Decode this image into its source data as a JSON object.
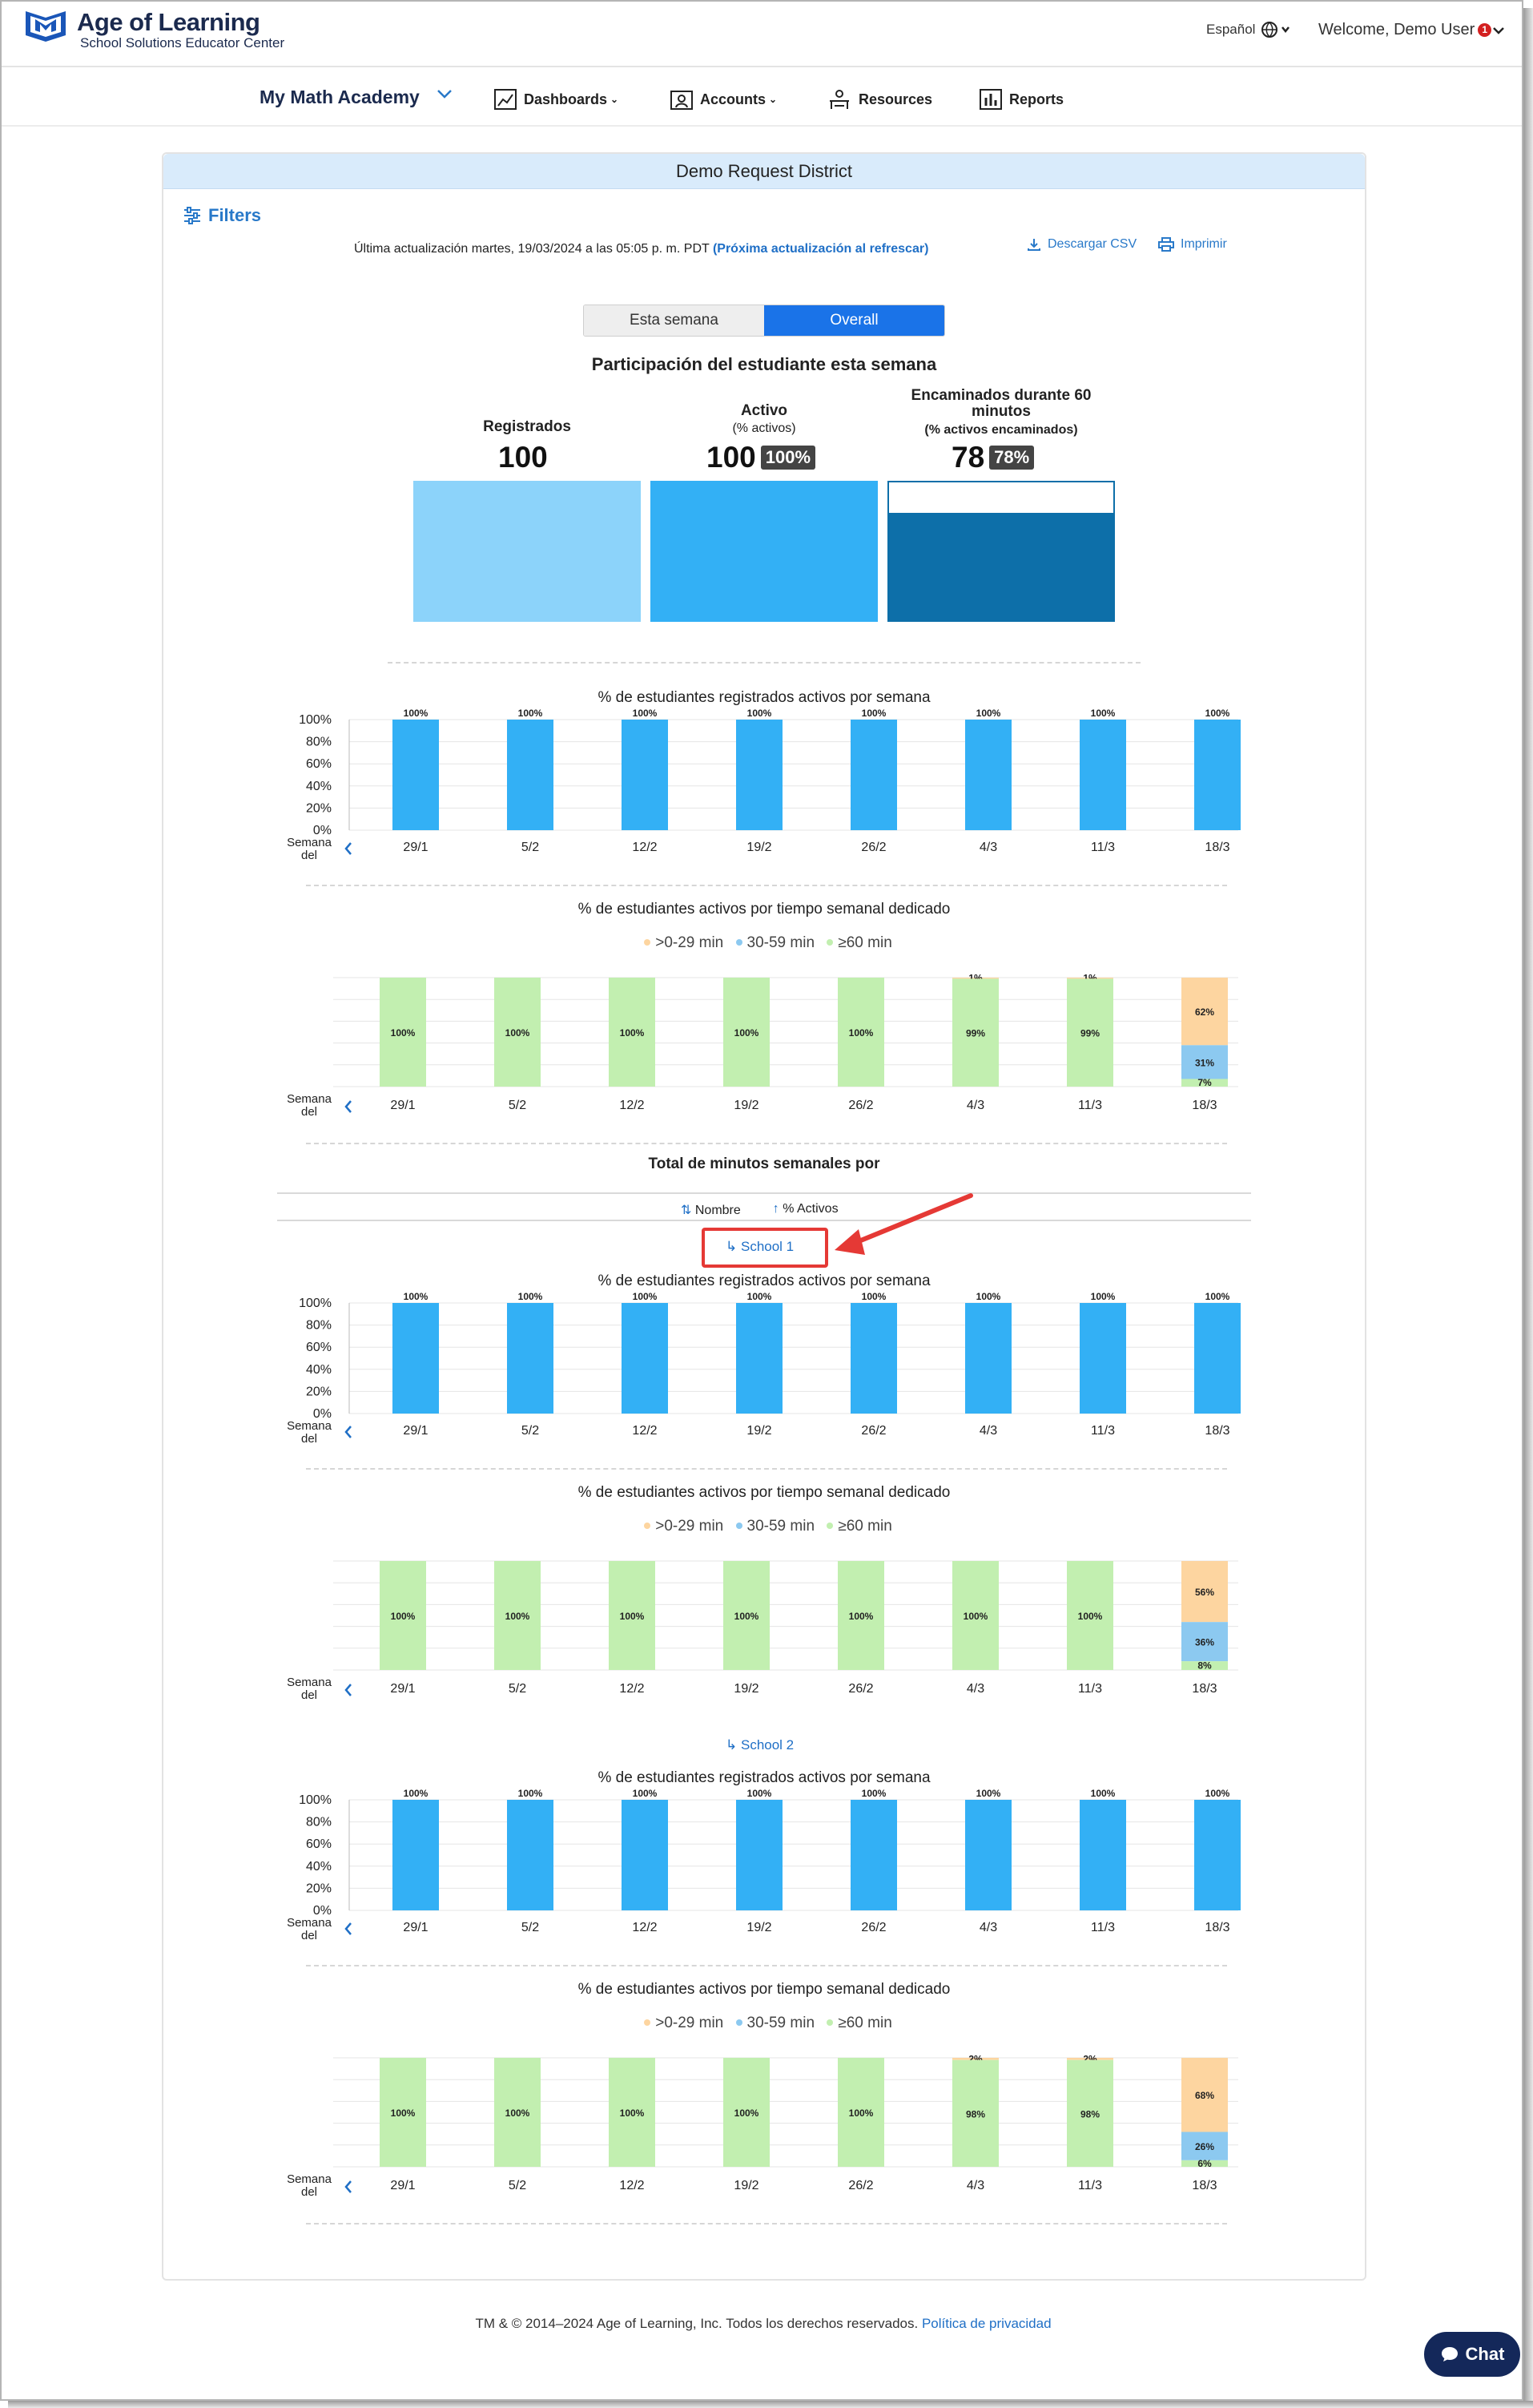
{
  "header": {
    "brand_title": "Age of Learning",
    "brand_sub": "School Solutions Educator Center",
    "language": "Español",
    "welcome": "Welcome, Demo User",
    "notif_count": "1"
  },
  "nav": {
    "product": "My Math Academy",
    "items": [
      "Dashboards",
      "Accounts",
      "Resources",
      "Reports"
    ]
  },
  "card": {
    "title": "Demo Request District",
    "filters": "Filters",
    "updated_text": "Última actualización martes, 19/03/2024 a las 05:05 p. m. PDT",
    "updated_link": "(Próxima actualización al refrescar)",
    "csv": "Descargar CSV",
    "print": "Imprimir",
    "toggle": [
      "Esta semana",
      "Overall"
    ],
    "participation_title": "Participación del estudiante esta semana"
  },
  "kpis": {
    "registered_label": "Registrados",
    "registered_value": "100",
    "active_label": "Activo",
    "active_sub": "(% activos)",
    "active_value": "100",
    "active_pct": "100%",
    "ontrack_label": "Encaminados durante 60 minutos",
    "ontrack_sub": "(% activos encaminados)",
    "ontrack_value": "78",
    "ontrack_pct": "78%",
    "ontrack_fraction": 0.78
  },
  "labels": {
    "active_chart_title": "% de estudiantes registrados activos por semana",
    "time_chart_title": "% de estudiantes activos por tiempo semanal dedicado",
    "legend": [
      ">0-29 min",
      "30-59 min",
      "≥60 min"
    ],
    "week_of": [
      "Semana",
      "del"
    ],
    "total_minutes": "Total de minutos semanales por",
    "sort_name": "Nombre",
    "sort_active": "% Activos",
    "school1": "School 1",
    "school2": "School 2"
  },
  "colors": {
    "active_bar": "#33b0f5",
    "light_bar": "#8cd3fa",
    "dark_bar": "#0d6fa9",
    "min_0_29": "#fdd5a0",
    "min_30_59": "#8cc9f0",
    "min_60": "#c2efb0"
  },
  "footer": {
    "text": "TM & © 2014–2024 Age of Learning, Inc. Todos los derechos reservados.",
    "privacy": "Política de privacidad",
    "chat": "Chat"
  },
  "chart_data": [
    {
      "type": "bar",
      "title": "% de estudiantes registrados activos por semana",
      "group": "Demo Request District",
      "categories": [
        "29/1",
        "5/2",
        "12/2",
        "19/2",
        "26/2",
        "4/3",
        "11/3",
        "18/3"
      ],
      "values": [
        100,
        100,
        100,
        100,
        100,
        100,
        100,
        100
      ],
      "yticks": [
        "100%",
        "80%",
        "60%",
        "40%",
        "20%",
        "0%"
      ],
      "ylim": [
        0,
        100
      ]
    },
    {
      "type": "bar",
      "title": "% de estudiantes activos por tiempo semanal dedicado",
      "group": "Demo Request District",
      "stacked": true,
      "categories": [
        "29/1",
        "5/2",
        "12/2",
        "19/2",
        "26/2",
        "4/3",
        "11/3",
        "18/3"
      ],
      "series": [
        {
          "name": ">0-29 min",
          "values": [
            0,
            0,
            0,
            0,
            0,
            1,
            1,
            62
          ]
        },
        {
          "name": "30-59 min",
          "values": [
            0,
            0,
            0,
            0,
            0,
            0,
            0,
            31
          ]
        },
        {
          "name": "≥60 min",
          "values": [
            100,
            100,
            100,
            100,
            100,
            99,
            99,
            7
          ]
        }
      ]
    },
    {
      "type": "bar",
      "title": "% de estudiantes registrados activos por semana",
      "group": "School 1",
      "categories": [
        "29/1",
        "5/2",
        "12/2",
        "19/2",
        "26/2",
        "4/3",
        "11/3",
        "18/3"
      ],
      "values": [
        100,
        100,
        100,
        100,
        100,
        100,
        100,
        100
      ],
      "yticks": [
        "100%",
        "80%",
        "60%",
        "40%",
        "20%",
        "0%"
      ],
      "ylim": [
        0,
        100
      ]
    },
    {
      "type": "bar",
      "title": "% de estudiantes activos por tiempo semanal dedicado",
      "group": "School 1",
      "stacked": true,
      "categories": [
        "29/1",
        "5/2",
        "12/2",
        "19/2",
        "26/2",
        "4/3",
        "11/3",
        "18/3"
      ],
      "series": [
        {
          "name": ">0-29 min",
          "values": [
            0,
            0,
            0,
            0,
            0,
            0,
            0,
            56
          ]
        },
        {
          "name": "30-59 min",
          "values": [
            0,
            0,
            0,
            0,
            0,
            0,
            0,
            36
          ]
        },
        {
          "name": "≥60 min",
          "values": [
            100,
            100,
            100,
            100,
            100,
            100,
            100,
            8
          ]
        }
      ]
    },
    {
      "type": "bar",
      "title": "% de estudiantes registrados activos por semana",
      "group": "School 2",
      "categories": [
        "29/1",
        "5/2",
        "12/2",
        "19/2",
        "26/2",
        "4/3",
        "11/3",
        "18/3"
      ],
      "values": [
        100,
        100,
        100,
        100,
        100,
        100,
        100,
        100
      ],
      "yticks": [
        "100%",
        "80%",
        "60%",
        "40%",
        "20%",
        "0%"
      ],
      "ylim": [
        0,
        100
      ]
    },
    {
      "type": "bar",
      "title": "% de estudiantes activos por tiempo semanal dedicado",
      "group": "School 2",
      "stacked": true,
      "categories": [
        "29/1",
        "5/2",
        "12/2",
        "19/2",
        "26/2",
        "4/3",
        "11/3",
        "18/3"
      ],
      "series": [
        {
          "name": ">0-29 min",
          "values": [
            0,
            0,
            0,
            0,
            0,
            2,
            2,
            68
          ]
        },
        {
          "name": "30-59 min",
          "values": [
            0,
            0,
            0,
            0,
            0,
            0,
            0,
            26
          ]
        },
        {
          "name": "≥60 min",
          "values": [
            100,
            100,
            100,
            100,
            100,
            98,
            98,
            6
          ]
        }
      ]
    }
  ]
}
